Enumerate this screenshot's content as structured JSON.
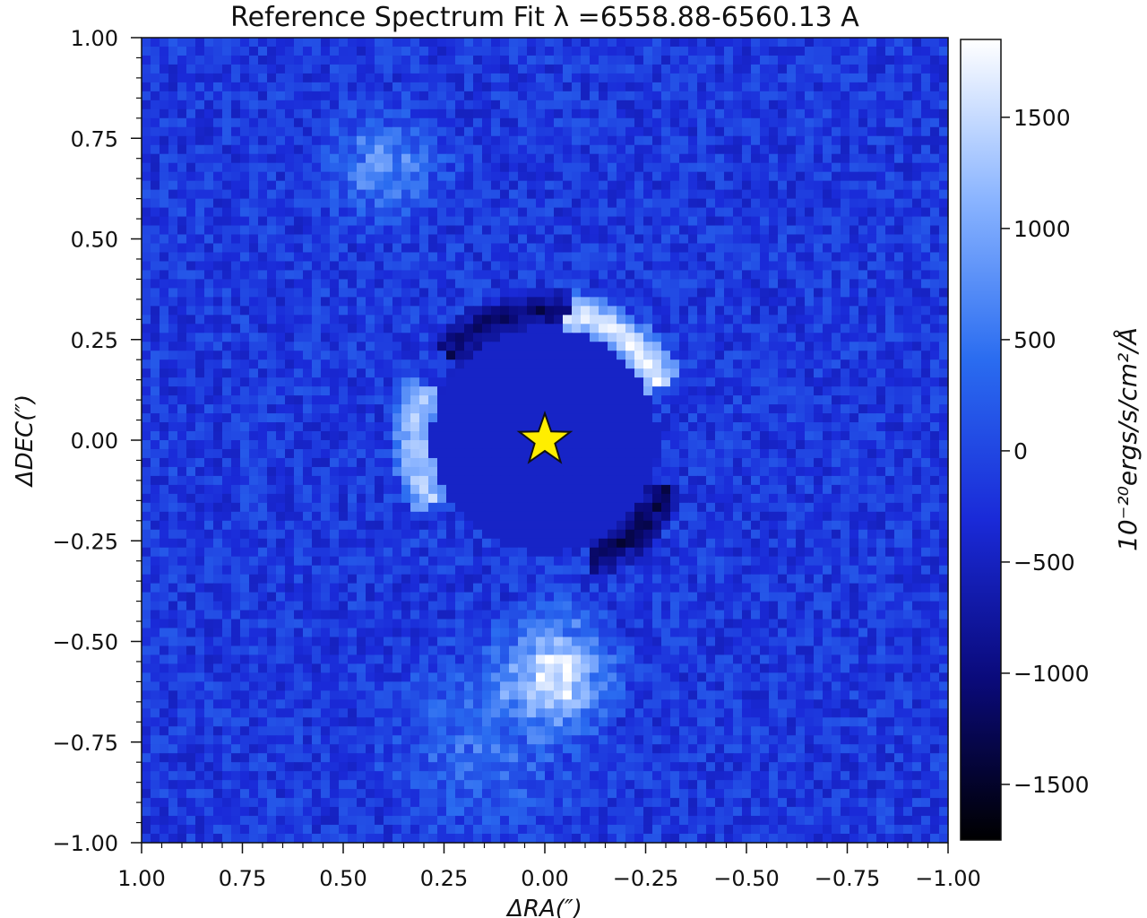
{
  "chart_data": {
    "type": "heatmap",
    "title": "Reference Spectrum Fit λ =6558.88-6560.13 A",
    "xlabel": "ΔRA(″)",
    "ylabel": "ΔDEC(″)",
    "colorbar_label": "10⁻²⁰ergs/s/cm²/Å",
    "xlim": [
      1.0,
      -1.0
    ],
    "ylim": [
      -1.0,
      1.0
    ],
    "clim": [
      -1750,
      1850
    ],
    "x_ticks": [
      {
        "value": 1.0,
        "label": "1.00"
      },
      {
        "value": 0.75,
        "label": "0.75"
      },
      {
        "value": 0.5,
        "label": "0.50"
      },
      {
        "value": 0.25,
        "label": "0.25"
      },
      {
        "value": 0.0,
        "label": "0.00"
      },
      {
        "value": -0.25,
        "label": "−0.25"
      },
      {
        "value": -0.5,
        "label": "−0.50"
      },
      {
        "value": -0.75,
        "label": "−0.75"
      },
      {
        "value": -1.0,
        "label": "−1.00"
      }
    ],
    "y_ticks": [
      {
        "value": 1.0,
        "label": "1.00"
      },
      {
        "value": 0.75,
        "label": "0.75"
      },
      {
        "value": 0.5,
        "label": "0.50"
      },
      {
        "value": 0.25,
        "label": "0.25"
      },
      {
        "value": 0.0,
        "label": "0.00"
      },
      {
        "value": -0.25,
        "label": "−0.25"
      },
      {
        "value": -0.5,
        "label": "−0.50"
      },
      {
        "value": -0.75,
        "label": "−0.75"
      },
      {
        "value": -1.0,
        "label": "−1.00"
      }
    ],
    "colorbar_ticks": [
      {
        "value": 1500,
        "label": "1500"
      },
      {
        "value": 1000,
        "label": "1000"
      },
      {
        "value": 500,
        "label": "500"
      },
      {
        "value": 0,
        "label": "0"
      },
      {
        "value": -500,
        "label": "−500"
      },
      {
        "value": -1000,
        "label": "−1000"
      },
      {
        "value": -1500,
        "label": "−1500"
      }
    ],
    "colormap": [
      "#000000",
      "#0a0a7a",
      "#1a2ad8",
      "#2a6cf0",
      "#8ab4ff",
      "#ffffff"
    ],
    "star_marker": {
      "x": 0.0,
      "y": 0.0,
      "color": "#ffee00"
    },
    "features": [
      {
        "kind": "mask-disk",
        "x": 0.0,
        "y": 0.0,
        "radius": 0.28,
        "value": -450
      },
      {
        "kind": "arc",
        "x": 0.0,
        "y": 0.0,
        "radius": 0.32,
        "angle_from": 25,
        "angle_to": 80,
        "value": 1800
      },
      {
        "kind": "arc",
        "x": 0.0,
        "y": 0.0,
        "radius": 0.32,
        "angle_from": 155,
        "angle_to": 210,
        "value": 1500
      },
      {
        "kind": "arc",
        "x": 0.0,
        "y": 0.0,
        "radius": 0.32,
        "angle_from": 80,
        "angle_to": 140,
        "value": -1200
      },
      {
        "kind": "arc",
        "x": 0.0,
        "y": 0.0,
        "radius": 0.32,
        "angle_from": 290,
        "angle_to": 340,
        "value": -1300
      },
      {
        "kind": "blob",
        "x": -0.03,
        "y": -0.57,
        "radius": 0.12,
        "value": 1800
      },
      {
        "kind": "blob",
        "x": 0.4,
        "y": 0.68,
        "radius": 0.12,
        "value": 900
      },
      {
        "kind": "blob",
        "x": 0.15,
        "y": -0.75,
        "radius": 0.2,
        "value": 600
      }
    ]
  }
}
